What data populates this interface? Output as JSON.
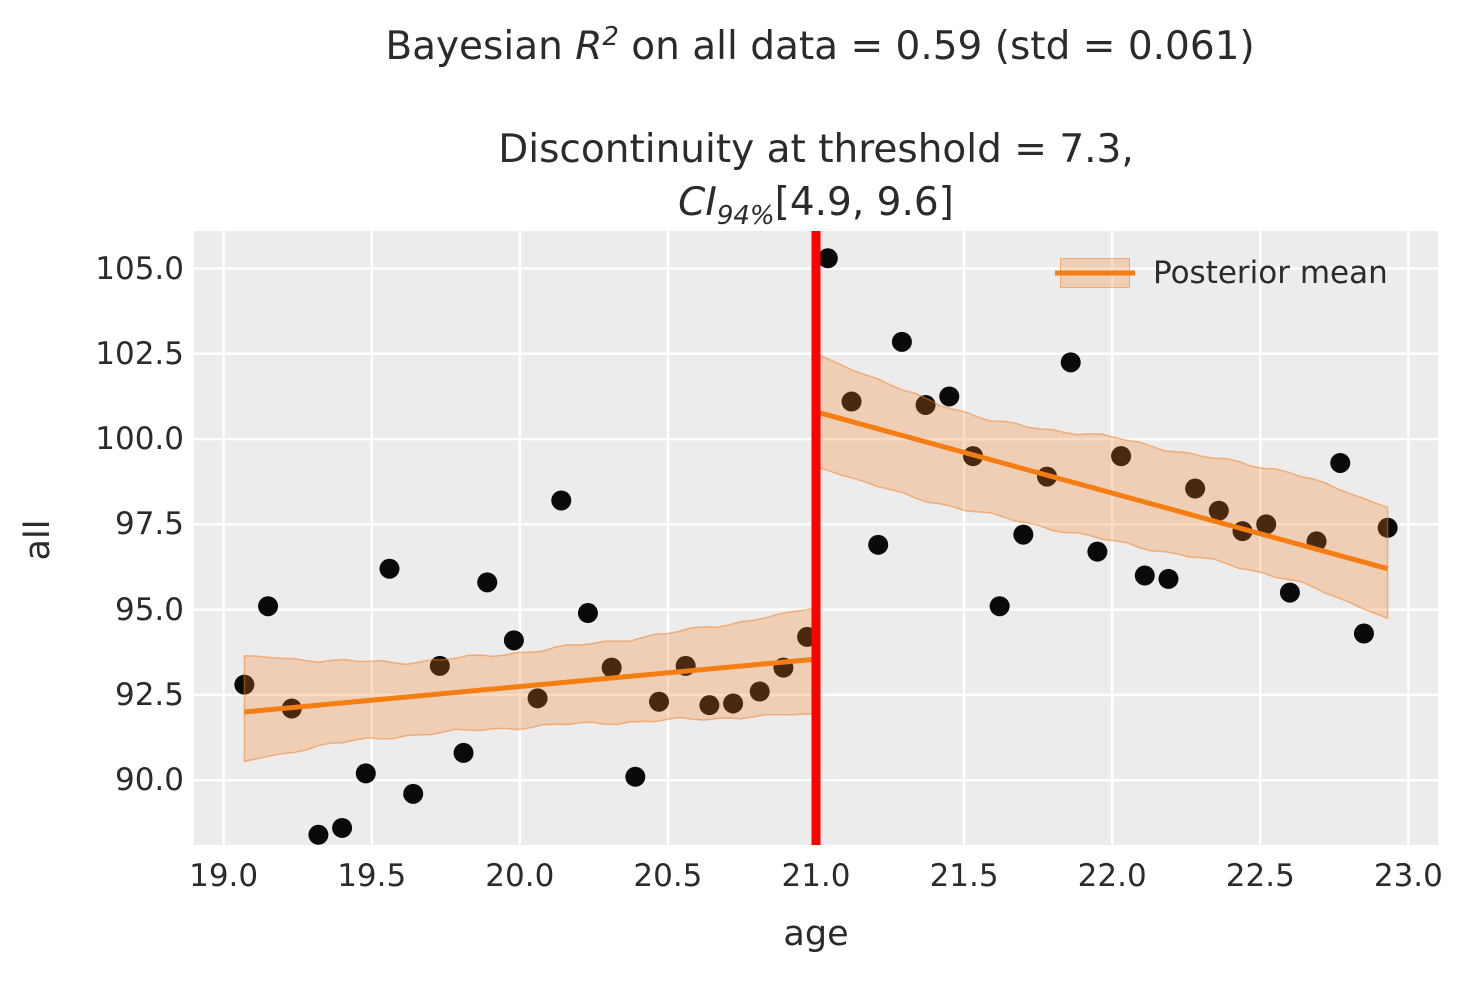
{
  "figure": {
    "title": {
      "prefix": "Bayesian ",
      "math_var": "R",
      "math_sup": "2",
      "suffix": " on all data = 0.59 (std = 0.061)"
    },
    "subtitle": {
      "line1": "Discontinuity at threshold = 7.3,",
      "ci_var": "CI",
      "ci_sub": "94%",
      "ci_rest": "[4.9, 9.6]"
    },
    "xlabel": "age",
    "ylabel": "all",
    "legend": {
      "label": "Posterior mean",
      "position": "upper right"
    }
  },
  "colors": {
    "plot_background": "#ececec",
    "grid": "#ffffff",
    "scatter": "#0a0a0a",
    "posterior_mean": "#f57d11",
    "ci_band_fill": "rgba(243,126,32,0.27)",
    "ci_band_edge": "rgba(243,126,32,0.5)",
    "threshold_line": "#ff0000",
    "text": "#2b2b2b"
  },
  "chart_data": {
    "type": "scatter",
    "title": "Bayesian R^2 on all data = 0.59 (std = 0.061)",
    "subtitle": "Discontinuity at threshold = 7.3, CI_94% [4.9, 9.6]",
    "xlabel": "age",
    "ylabel": "all",
    "xlim": [
      18.9,
      23.1
    ],
    "ylim": [
      88.1,
      106.1
    ],
    "grid": true,
    "x_ticks": [
      19.0,
      19.5,
      20.0,
      20.5,
      21.0,
      21.5,
      22.0,
      22.5,
      23.0
    ],
    "x_tick_labels": [
      "19.0",
      "19.5",
      "20.0",
      "20.5",
      "21.0",
      "21.5",
      "22.0",
      "22.5",
      "23.0"
    ],
    "y_ticks": [
      90.0,
      92.5,
      95.0,
      97.5,
      100.0,
      102.5,
      105.0
    ],
    "y_tick_labels": [
      "90.0",
      "92.5",
      "95.0",
      "97.5",
      "100.0",
      "102.5",
      "105.0"
    ],
    "threshold": {
      "x": 21.0
    },
    "series": [
      {
        "name": "observations",
        "type": "scatter",
        "marker_radius": 10,
        "points": [
          [
            19.07,
            92.8
          ],
          [
            19.15,
            95.1
          ],
          [
            19.23,
            92.1
          ],
          [
            19.32,
            88.4
          ],
          [
            19.4,
            88.6
          ],
          [
            19.48,
            90.2
          ],
          [
            19.56,
            96.2
          ],
          [
            19.64,
            89.6
          ],
          [
            19.73,
            93.35
          ],
          [
            19.81,
            90.8
          ],
          [
            19.89,
            95.8
          ],
          [
            19.98,
            94.1
          ],
          [
            20.06,
            92.4
          ],
          [
            20.14,
            98.2
          ],
          [
            20.23,
            94.9
          ],
          [
            20.31,
            93.3
          ],
          [
            20.39,
            90.1
          ],
          [
            20.47,
            92.3
          ],
          [
            20.56,
            93.35
          ],
          [
            20.64,
            92.2
          ],
          [
            20.72,
            92.25
          ],
          [
            20.81,
            92.6
          ],
          [
            20.89,
            93.3
          ],
          [
            20.97,
            94.2
          ],
          [
            21.04,
            105.3
          ],
          [
            21.12,
            101.1
          ],
          [
            21.21,
            96.9
          ],
          [
            21.29,
            102.85
          ],
          [
            21.37,
            101.0
          ],
          [
            21.45,
            101.25
          ],
          [
            21.53,
            99.5
          ],
          [
            21.62,
            95.1
          ],
          [
            21.7,
            97.2
          ],
          [
            21.78,
            98.9
          ],
          [
            21.86,
            102.25
          ],
          [
            21.95,
            96.7
          ],
          [
            22.03,
            99.5
          ],
          [
            22.11,
            96.0
          ],
          [
            22.19,
            95.9
          ],
          [
            22.28,
            98.55
          ],
          [
            22.36,
            97.9
          ],
          [
            22.44,
            97.3
          ],
          [
            22.52,
            97.5
          ],
          [
            22.6,
            95.5
          ],
          [
            22.69,
            97.0
          ],
          [
            22.77,
            99.3
          ],
          [
            22.85,
            94.3
          ],
          [
            22.93,
            97.4
          ]
        ]
      },
      {
        "name": "posterior-mean-left",
        "type": "line",
        "points": [
          [
            19.07,
            92.0
          ],
          [
            21.0,
            93.55
          ]
        ]
      },
      {
        "name": "posterior-mean-right",
        "type": "line",
        "points": [
          [
            21.0,
            100.8
          ],
          [
            22.93,
            96.2
          ]
        ]
      },
      {
        "name": "ci-band-left",
        "type": "band",
        "knots": [
          [
            19.07,
            90.55,
            93.65
          ],
          [
            19.35,
            91.05,
            93.5
          ],
          [
            19.6,
            91.3,
            93.45
          ],
          [
            19.9,
            91.5,
            93.65
          ],
          [
            20.2,
            91.65,
            93.95
          ],
          [
            20.5,
            91.75,
            94.3
          ],
          [
            20.75,
            91.85,
            94.65
          ],
          [
            21.0,
            91.95,
            95.05
          ]
        ]
      },
      {
        "name": "ci-band-right",
        "type": "band",
        "knots": [
          [
            21.0,
            99.2,
            102.5
          ],
          [
            21.3,
            98.35,
            101.4
          ],
          [
            21.6,
            97.75,
            100.5
          ],
          [
            22.0,
            97.0,
            100.05
          ],
          [
            22.3,
            96.5,
            99.5
          ],
          [
            22.6,
            95.9,
            99.05
          ],
          [
            22.93,
            94.75,
            98.0
          ]
        ]
      }
    ]
  }
}
